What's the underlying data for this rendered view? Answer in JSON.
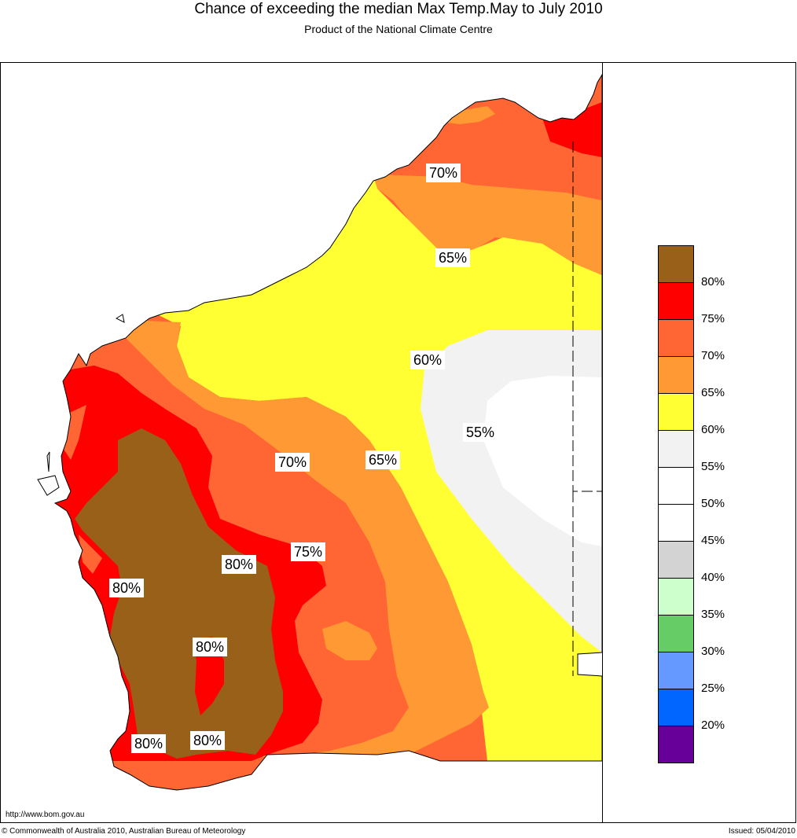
{
  "header": {
    "title": "Chance of exceeding the median Max Temp.May to July 2010",
    "subtitle": "Product of the National Climate Centre"
  },
  "footer": {
    "url": "http://www.bom.gov.au",
    "copyright": "© Commonwealth of Australia 2010, Australian Bureau of Meteorology",
    "issued": "Issued: 05/04/2010"
  },
  "legend": {
    "items": [
      {
        "label": "80%",
        "color": "#996019"
      },
      {
        "label": "75%",
        "color": "#ff0000"
      },
      {
        "label": "70%",
        "color": "#ff6633"
      },
      {
        "label": "65%",
        "color": "#ff9933"
      },
      {
        "label": "60%",
        "color": "#ffff33"
      },
      {
        "label": "55%",
        "color": "#f2f2f2"
      },
      {
        "label": "50%",
        "color": "#ffffff"
      },
      {
        "label": "45%",
        "color": "#ffffff"
      },
      {
        "label": "40%",
        "color": "#d3d3d3"
      },
      {
        "label": "35%",
        "color": "#ccffcc"
      },
      {
        "label": "30%",
        "color": "#66cc66"
      },
      {
        "label": "25%",
        "color": "#6699ff"
      },
      {
        "label": "20%",
        "color": "#0066ff"
      },
      {
        "label": "",
        "color": "#660099"
      }
    ]
  },
  "contour_labels": {
    "l70_north": "70%",
    "l65_north": "65%",
    "l60": "60%",
    "l55": "55%",
    "l70_mid": "70%",
    "l65_mid": "65%",
    "l75": "75%",
    "l80_a": "80%",
    "l80_b": "80%",
    "l80_c": "80%",
    "l80_d": "80%",
    "l80_e": "80%"
  }
}
